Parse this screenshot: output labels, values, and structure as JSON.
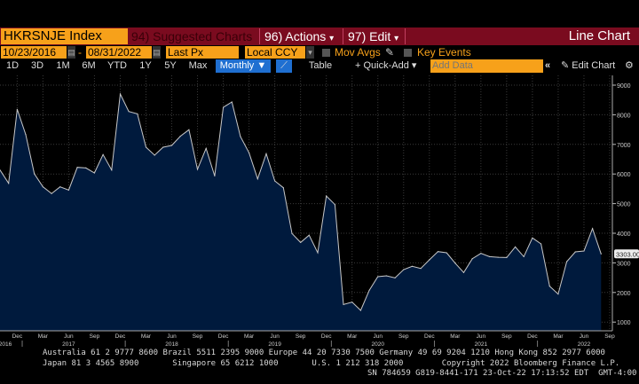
{
  "header": {
    "ticker": "HKRSNJE Index",
    "suggested_charts": "94) Suggested Charts",
    "actions": "96) Actions",
    "edit": "97) Edit",
    "chart_type": "Line Chart",
    "dropdown_icon": "triangle-down"
  },
  "controls": {
    "start_date": "10/23/2016",
    "dash": "-",
    "end_date": "08/31/2022",
    "field": "Last Px",
    "currency": "Local CCY",
    "mov_avgs": "Mov Avgs",
    "key_events": "Key Events"
  },
  "toolbar": {
    "periods": [
      "1D",
      "3D",
      "1M",
      "6M",
      "YTD",
      "1Y",
      "5Y",
      "Max"
    ],
    "frequency": "Monthly ▼",
    "table": "Table",
    "quick_add": "+ Quick-Add",
    "add_data_placeholder": "Add Data",
    "collapse": "«",
    "edit_chart": "Edit Chart",
    "gear": "⚙"
  },
  "colors": {
    "brand_bar": "#7a0b1f",
    "amber": "#f7a11a",
    "fill": "#001a3d",
    "line": "#c8c8c8",
    "active": "#1f6fd1"
  },
  "chart_data": {
    "type": "area",
    "ylim": [
      700,
      9300
    ],
    "yticks": [
      1000,
      2000,
      3000,
      4000,
      5000,
      6000,
      7000,
      8000,
      9000
    ],
    "grid": true,
    "last_value_label": "3303.00",
    "x_tick_labels": [
      "Dec",
      "Mar",
      "Jun",
      "Sep",
      "Dec",
      "Mar",
      "Jun",
      "Sep",
      "Dec",
      "Mar",
      "Jun",
      "Sep",
      "Dec",
      "Mar",
      "Jun",
      "Sep",
      "Dec",
      "Mar",
      "Jun",
      "Sep",
      "Dec",
      "Mar",
      "Jun",
      "Sep"
    ],
    "year_labels": [
      "2016",
      "2017",
      "2018",
      "2019",
      "2020",
      "2021",
      "2022"
    ],
    "x": [
      "2016-10",
      "2016-11",
      "2016-12",
      "2017-01",
      "2017-02",
      "2017-03",
      "2017-04",
      "2017-05",
      "2017-06",
      "2017-07",
      "2017-08",
      "2017-09",
      "2017-10",
      "2017-11",
      "2017-12",
      "2018-01",
      "2018-02",
      "2018-03",
      "2018-04",
      "2018-05",
      "2018-06",
      "2018-07",
      "2018-08",
      "2018-09",
      "2018-10",
      "2018-11",
      "2018-12",
      "2019-01",
      "2019-02",
      "2019-03",
      "2019-04",
      "2019-05",
      "2019-06",
      "2019-07",
      "2019-08",
      "2019-09",
      "2019-10",
      "2019-11",
      "2019-12",
      "2020-01",
      "2020-02",
      "2020-03",
      "2020-04",
      "2020-05",
      "2020-06",
      "2020-07",
      "2020-08",
      "2020-09",
      "2020-10",
      "2020-11",
      "2020-12",
      "2021-01",
      "2021-02",
      "2021-03",
      "2021-04",
      "2021-05",
      "2021-06",
      "2021-07",
      "2021-08",
      "2021-09",
      "2021-10",
      "2021-11",
      "2021-12",
      "2022-01",
      "2022-02",
      "2022-03",
      "2022-04",
      "2022-05",
      "2022-06",
      "2022-07",
      "2022-08"
    ],
    "values": [
      6135,
      5686,
      8182,
      7333,
      6006,
      5566,
      5338,
      5566,
      5457,
      6225,
      6205,
      6036,
      6656,
      6135,
      8701,
      8111,
      8031,
      6904,
      6635,
      6904,
      6964,
      7274,
      7494,
      6156,
      6864,
      5935,
      8251,
      8431,
      7264,
      6715,
      5835,
      6685,
      5766,
      5536,
      3990,
      3690,
      3935,
      3341,
      5257,
      4967,
      1594,
      1673,
      1395,
      2075,
      2533,
      2563,
      2494,
      2772,
      2882,
      2812,
      3102,
      3380,
      3340,
      2990,
      2673,
      3141,
      3320,
      3210,
      3190,
      3180,
      3540,
      3210,
      3840,
      3640,
      2214,
      1945,
      3042,
      3371,
      3400,
      4159,
      3303
    ]
  },
  "footer": {
    "line1": "Australia 61 2 9777 8600 Brazil 5511 2395 9000 Europe 44 20 7330 7500 Germany 49 69 9204 1210 Hong Kong 852 2977 6000",
    "line2": "Japan 81 3 4565 8900       Singapore 65 6212 1000       U.S. 1 212 318 2000        Copyright 2022 Bloomberg Finance L.P.",
    "line3": "SN 784659 G819-8441-171 23-Oct-22 17:13:52 EDT  GMT-4:00"
  }
}
